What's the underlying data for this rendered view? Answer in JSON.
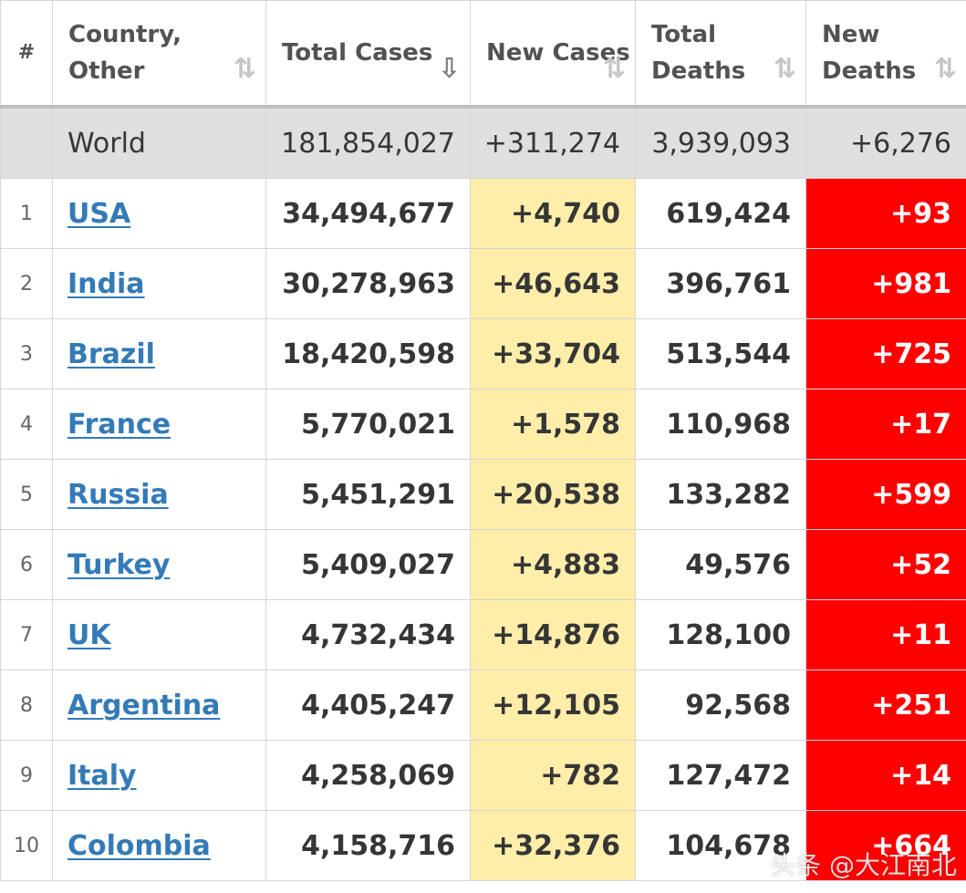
{
  "table": {
    "headers": {
      "rank": "#",
      "country": "Country, Other",
      "total_cases": "Total Cases",
      "new_cases": "New Cases",
      "total_deaths": "Total Deaths",
      "new_deaths": "New Deaths"
    },
    "sort_glyph": "⇅",
    "sort_glyph_active": "⇩",
    "world": {
      "name": "World",
      "total_cases": "181,854,027",
      "new_cases": "+311,274",
      "total_deaths": "3,939,093",
      "new_deaths": "+6,276"
    },
    "rows": [
      {
        "rank": "1",
        "country": "USA",
        "total_cases": "34,494,677",
        "new_cases": "+4,740",
        "total_deaths": "619,424",
        "new_deaths": "+93"
      },
      {
        "rank": "2",
        "country": "India",
        "total_cases": "30,278,963",
        "new_cases": "+46,643",
        "total_deaths": "396,761",
        "new_deaths": "+981"
      },
      {
        "rank": "3",
        "country": "Brazil",
        "total_cases": "18,420,598",
        "new_cases": "+33,704",
        "total_deaths": "513,544",
        "new_deaths": "+725"
      },
      {
        "rank": "4",
        "country": "France",
        "total_cases": "5,770,021",
        "new_cases": "+1,578",
        "total_deaths": "110,968",
        "new_deaths": "+17"
      },
      {
        "rank": "5",
        "country": "Russia",
        "total_cases": "5,451,291",
        "new_cases": "+20,538",
        "total_deaths": "133,282",
        "new_deaths": "+599"
      },
      {
        "rank": "6",
        "country": "Turkey",
        "total_cases": "5,409,027",
        "new_cases": "+4,883",
        "total_deaths": "49,576",
        "new_deaths": "+52"
      },
      {
        "rank": "7",
        "country": "UK",
        "total_cases": "4,732,434",
        "new_cases": "+14,876",
        "total_deaths": "128,100",
        "new_deaths": "+11"
      },
      {
        "rank": "8",
        "country": "Argentina",
        "total_cases": "4,405,247",
        "new_cases": "+12,105",
        "total_deaths": "92,568",
        "new_deaths": "+251"
      },
      {
        "rank": "9",
        "country": "Italy",
        "total_cases": "4,258,069",
        "new_cases": "+782",
        "total_deaths": "127,472",
        "new_deaths": "+14"
      },
      {
        "rank": "10",
        "country": "Colombia",
        "total_cases": "4,158,716",
        "new_cases": "+32,376",
        "total_deaths": "104,678",
        "new_deaths": "+664"
      }
    ]
  },
  "watermark": "头条 @大江南北",
  "colors": {
    "link": "#337ab7",
    "new_cases_bg": "#ffeeaa",
    "new_deaths_bg": "#ff0000",
    "world_row_bg": "#dfdfdf"
  }
}
